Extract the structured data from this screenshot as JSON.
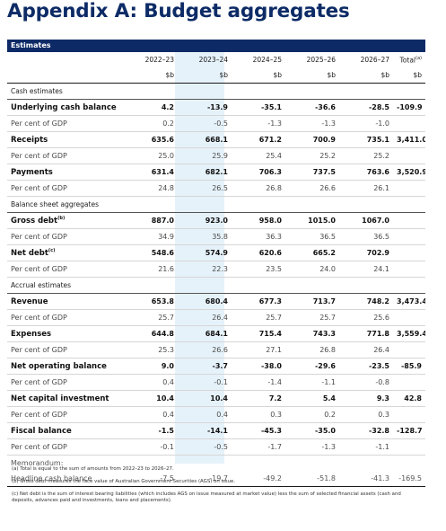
{
  "page": {
    "title": "Appendix A: Budget aggregates"
  },
  "table": {
    "band_label": "Estimates",
    "years": [
      "2022–23",
      "2023–24",
      "2024–25",
      "2025–26",
      "2026–27",
      "Total"
    ],
    "total_note": "(a)",
    "units": [
      "$b",
      "$b",
      "$b",
      "$b",
      "$b",
      "$b"
    ],
    "rows": [
      {
        "type": "sec",
        "label": "Cash estimates",
        "values": [
          "",
          "",
          "",
          "",
          "",
          ""
        ]
      },
      {
        "type": "main",
        "label": "Underlying cash balance",
        "note": "",
        "values": [
          "4.2",
          "-13.9",
          "-35.1",
          "-36.6",
          "-28.5",
          "-109.9"
        ]
      },
      {
        "type": "sub",
        "label": "Per cent of GDP",
        "values": [
          "0.2",
          "-0.5",
          "-1.3",
          "-1.3",
          "-1.0",
          ""
        ]
      },
      {
        "type": "main",
        "label": "Receipts",
        "note": "",
        "values": [
          "635.6",
          "668.1",
          "671.2",
          "700.9",
          "735.1",
          "3,411.0"
        ]
      },
      {
        "type": "sub",
        "label": "Per cent of GDP",
        "values": [
          "25.0",
          "25.9",
          "25.4",
          "25.2",
          "25.2",
          ""
        ]
      },
      {
        "type": "main",
        "label": "Payments",
        "note": "",
        "values": [
          "631.4",
          "682.1",
          "706.3",
          "737.5",
          "763.6",
          "3,520.9"
        ]
      },
      {
        "type": "sub",
        "label": "Per cent of GDP",
        "values": [
          "24.8",
          "26.5",
          "26.8",
          "26.6",
          "26.1",
          ""
        ]
      },
      {
        "type": "sec",
        "label": "Balance sheet aggregates",
        "values": [
          "",
          "",
          "",
          "",
          "",
          ""
        ]
      },
      {
        "type": "main",
        "label": "Gross debt",
        "note": "(b)",
        "values": [
          "887.0",
          "923.0",
          "958.0",
          "1015.0",
          "1067.0",
          ""
        ]
      },
      {
        "type": "sub",
        "label": "Per cent of GDP",
        "values": [
          "34.9",
          "35.8",
          "36.3",
          "36.5",
          "36.5",
          ""
        ]
      },
      {
        "type": "main",
        "label": "Net debt",
        "note": "(c)",
        "values": [
          "548.6",
          "574.9",
          "620.6",
          "665.2",
          "702.9",
          ""
        ]
      },
      {
        "type": "sub",
        "label": "Per cent of GDP",
        "values": [
          "21.6",
          "22.3",
          "23.5",
          "24.0",
          "24.1",
          ""
        ]
      },
      {
        "type": "sec",
        "label": "Accrual estimates",
        "values": [
          "",
          "",
          "",
          "",
          "",
          ""
        ]
      },
      {
        "type": "main",
        "label": "Revenue",
        "note": "",
        "values": [
          "653.8",
          "680.4",
          "677.3",
          "713.7",
          "748.2",
          "3,473.4"
        ]
      },
      {
        "type": "sub",
        "label": "Per cent of GDP",
        "values": [
          "25.7",
          "26.4",
          "25.7",
          "25.7",
          "25.6",
          ""
        ]
      },
      {
        "type": "main",
        "label": "Expenses",
        "note": "",
        "values": [
          "644.8",
          "684.1",
          "715.4",
          "743.3",
          "771.8",
          "3,559.4"
        ]
      },
      {
        "type": "sub",
        "label": "Per cent of GDP",
        "values": [
          "25.3",
          "26.6",
          "27.1",
          "26.8",
          "26.4",
          ""
        ]
      },
      {
        "type": "main",
        "label": "Net operating balance",
        "note": "",
        "values": [
          "9.0",
          "-3.7",
          "-38.0",
          "-29.6",
          "-23.5",
          "-85.9"
        ]
      },
      {
        "type": "sub",
        "label": "Per cent of GDP",
        "values": [
          "0.4",
          "-0.1",
          "-1.4",
          "-1.1",
          "-0.8",
          ""
        ]
      },
      {
        "type": "main",
        "label": "Net capital investment",
        "note": "",
        "values": [
          "10.4",
          "10.4",
          "7.2",
          "5.4",
          "9.3",
          "42.8"
        ]
      },
      {
        "type": "sub",
        "label": "Per cent of GDP",
        "values": [
          "0.4",
          "0.4",
          "0.3",
          "0.2",
          "0.3",
          ""
        ]
      },
      {
        "type": "main",
        "label": "Fiscal balance",
        "note": "",
        "values": [
          "-1.5",
          "-14.1",
          "-45.3",
          "-35.0",
          "-32.8",
          "-128.7"
        ]
      },
      {
        "type": "sub",
        "label": "Per cent of GDP",
        "values": [
          "-0.1",
          "-0.5",
          "-1.7",
          "-1.3",
          "-1.1",
          ""
        ]
      },
      {
        "type": "memo",
        "label": "Memorandum:",
        "values": [
          "",
          "",
          "",
          "",
          "",
          ""
        ]
      },
      {
        "type": "memo",
        "label": "Headline cash balance",
        "values": [
          "-7.5",
          "-19.7",
          "-49.2",
          "-51.8",
          "-41.3",
          "-169.5"
        ]
      }
    ]
  },
  "footnotes": [
    "(a) Total is equal to the sum of amounts from 2022–23 to 2026–27.",
    "(b) Gross debt measures the face value of Australian Government Securities (AGS) on issue.",
    "(c) Net debt is the sum of interest bearing liabilities (which includes AGS on issue measured at market value) less the sum of selected financial assets (cash and deposits, advances paid and investments, loans and placements)."
  ],
  "colors": {
    "title": "#0d2b66",
    "band": "#0e2a66",
    "highlight_column": "#e6f2fa"
  }
}
